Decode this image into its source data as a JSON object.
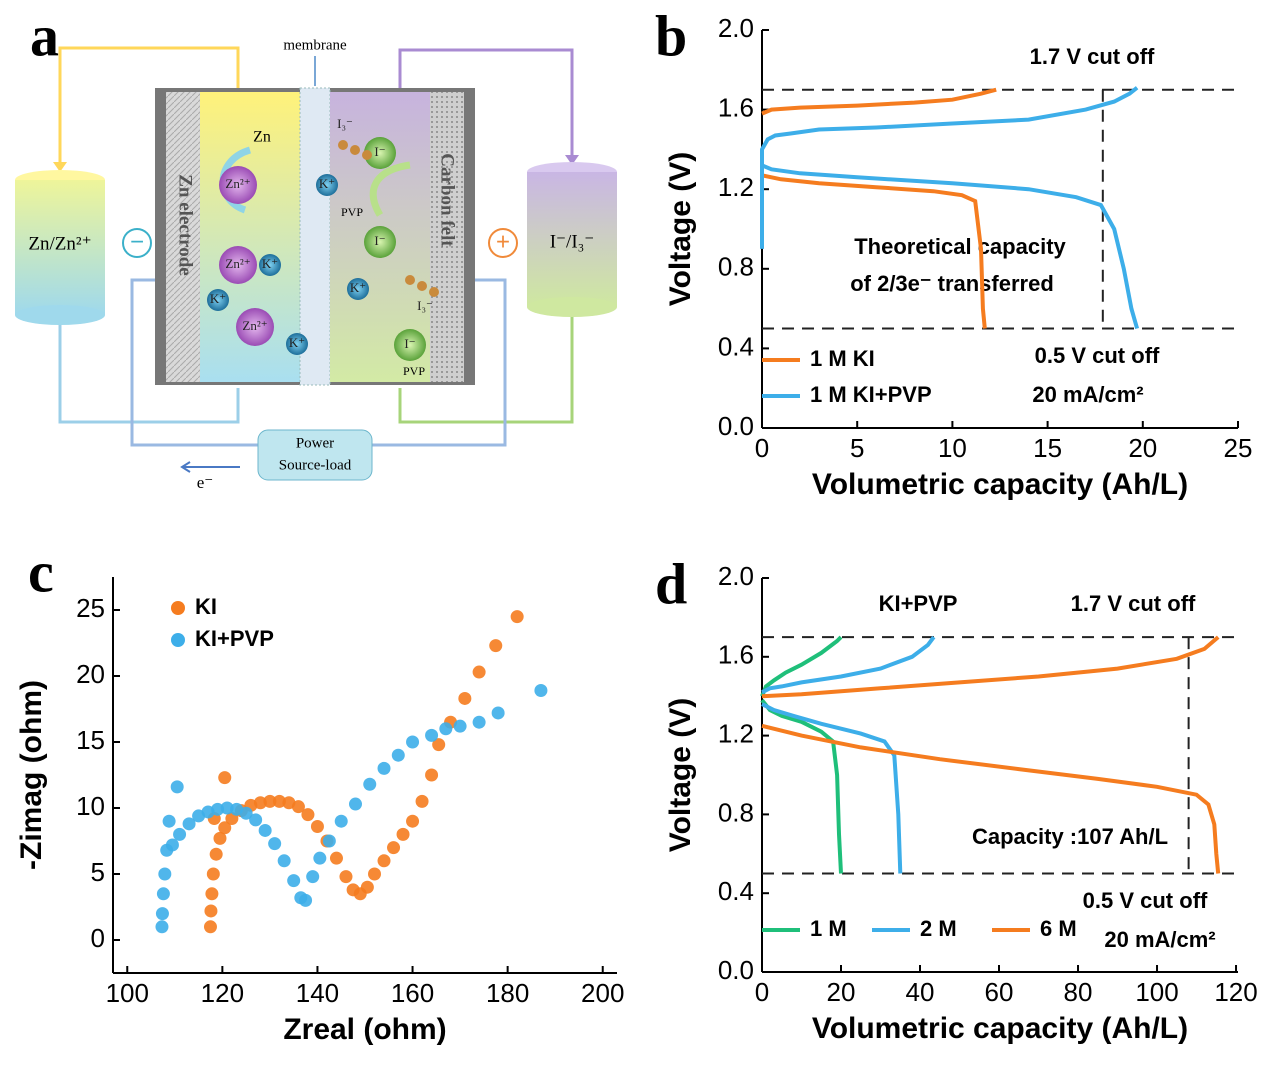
{
  "diagram": {
    "label": "a",
    "membrane": "membrane",
    "left_tank": "Zn/Zn²⁺",
    "right_tank": "I⁻/I₃⁻",
    "left_electrode": "Zn electrode",
    "right_electrode": "Carbon felt",
    "power": [
      "Power",
      "Source-load"
    ],
    "electron": "e⁻",
    "minus": "−",
    "plus": "+",
    "zn": "Zn",
    "pvp": [
      "PVP",
      "PVP"
    ],
    "ions": [
      "Zn²⁺",
      "Zn²⁺",
      "Zn²⁺",
      "K⁺",
      "K⁺",
      "K⁺",
      "K⁺",
      "K⁺",
      "I⁻",
      "I⁻",
      "I⁻",
      "I₃⁻",
      "I₃⁻"
    ]
  },
  "chart_data": [
    {
      "label": "b",
      "type": "line",
      "xlabel": "Volumetric capacity (Ah/L)",
      "ylabel": "Voltage (V)",
      "xlim": [
        0,
        25
      ],
      "ylim": [
        0,
        2
      ],
      "xticks": [
        0,
        5,
        10,
        15,
        20,
        25
      ],
      "yticks": [
        {
          "value": 0,
          "label": "0.0"
        },
        0.4,
        0.8,
        1.2,
        1.6,
        {
          "value": 2,
          "label": "2.0"
        }
      ],
      "hlines": [
        1.7,
        0.5
      ],
      "vline": 17.9,
      "annotations": [
        "1.7 V cut off",
        "Theoretical capacity",
        "of 2/3e⁻ transferred",
        "0.5 V cut off",
        "20 mA/cm²"
      ],
      "series": [
        {
          "name": "1 M KI",
          "color": "#f57c1f",
          "x": [
            0,
            0.5,
            2,
            5,
            8,
            10,
            11.5,
            12.3,
            null,
            0,
            1,
            3,
            6,
            9,
            10.5,
            11.2,
            11.5,
            11.6,
            11.7
          ],
          "values": [
            1.58,
            1.6,
            1.61,
            1.62,
            1.635,
            1.65,
            1.68,
            1.7,
            null,
            1.27,
            1.25,
            1.23,
            1.21,
            1.19,
            1.17,
            1.14,
            0.9,
            0.6,
            0.5
          ]
        },
        {
          "name": "1 M KI+PVP",
          "color": "#3daee9",
          "x": [
            0,
            0,
            0.3,
            0.7,
            1.5,
            3,
            6,
            10,
            14,
            17,
            18.5,
            19.3,
            19.7,
            null,
            0,
            0.5,
            2,
            5,
            10,
            14,
            16.5,
            17.8,
            18.5,
            19,
            19.4,
            19.7
          ],
          "values": [
            0.9,
            1.4,
            1.45,
            1.47,
            1.48,
            1.5,
            1.51,
            1.53,
            1.55,
            1.6,
            1.64,
            1.68,
            1.71,
            null,
            1.32,
            1.3,
            1.28,
            1.26,
            1.23,
            1.2,
            1.16,
            1.12,
            1.0,
            0.8,
            0.6,
            0.5
          ]
        }
      ]
    },
    {
      "label": "c",
      "type": "scatter",
      "xlabel": "Zreal (ohm)",
      "ylabel": "-Zimag (ohm)",
      "xlim": [
        97,
        203
      ],
      "ylim": [
        -2.5,
        27.5
      ],
      "xticks": [
        100,
        120,
        140,
        160,
        180,
        200
      ],
      "yticks": [
        0,
        5,
        10,
        15,
        20,
        25
      ],
      "series": [
        {
          "name": "KI",
          "color": "#f57c1f",
          "x": [
            117.5,
            117.6,
            117.8,
            118.1,
            118.7,
            119.5,
            120.5,
            122,
            124,
            126,
            128,
            130,
            132,
            134,
            136,
            138,
            140,
            142,
            144,
            146,
            147.5,
            149,
            150.5,
            152,
            154,
            156,
            158,
            160,
            162,
            164,
            165.5,
            168,
            171,
            174,
            177.5,
            182,
            120.5,
            118.3
          ],
          "values": [
            1.0,
            2.2,
            3.5,
            5,
            6.5,
            7.7,
            8.5,
            9.2,
            9.8,
            10.2,
            10.4,
            10.5,
            10.5,
            10.4,
            10.1,
            9.5,
            8.6,
            7.5,
            6.2,
            4.8,
            3.8,
            3.5,
            4,
            5,
            6,
            7,
            8,
            9,
            10.5,
            12.5,
            14.8,
            16.5,
            18.3,
            20.3,
            22.3,
            24.5,
            12.3,
            9.2
          ]
        },
        {
          "name": "KI+PVP",
          "color": "#3daee9",
          "x": [
            107.3,
            107.4,
            107.6,
            107.9,
            108.3,
            108.8,
            110.5,
            109.5,
            111,
            113,
            115,
            117,
            119,
            121,
            123,
            125,
            127,
            129,
            131,
            133,
            135,
            136.5,
            137.5,
            139,
            140.5,
            142.5,
            145,
            148,
            151,
            154,
            157,
            160,
            164,
            167,
            170,
            174,
            178,
            187
          ],
          "values": [
            1,
            2,
            3.5,
            5,
            6.8,
            9,
            11.6,
            7.2,
            8,
            8.8,
            9.4,
            9.7,
            9.9,
            10,
            9.9,
            9.6,
            9.1,
            8.3,
            7.3,
            6,
            4.5,
            3.2,
            3,
            4.8,
            6.2,
            7.5,
            9,
            10.3,
            11.8,
            13,
            14,
            15,
            15.5,
            16,
            16.2,
            16.5,
            17.2,
            18.9
          ]
        }
      ]
    },
    {
      "label": "d",
      "type": "line",
      "xlabel": "Volumetric capacity (Ah/L)",
      "ylabel": "Voltage (V)",
      "xlim": [
        0,
        120.5
      ],
      "ylim": [
        0,
        2
      ],
      "xticks": [
        0,
        20,
        40,
        60,
        80,
        100,
        120
      ],
      "yticks": [
        {
          "value": 0,
          "label": "0.0"
        },
        0.4,
        0.8,
        1.2,
        1.6,
        {
          "value": 2,
          "label": "2.0"
        }
      ],
      "hlines": [
        1.7,
        0.5
      ],
      "vline": 108,
      "annotations": [
        "KI+PVP",
        "1.7 V cut off",
        "Capacity :107 Ah/L",
        "0.5 V cut off",
        "20 mA/cm²"
      ],
      "series": [
        {
          "name": "1 M",
          "color": "#1fbf7a",
          "x": [
            0,
            1,
            3,
            6,
            10,
            15,
            19,
            20,
            null,
            0,
            2,
            5,
            10,
            15,
            18,
            19,
            19.5,
            20
          ],
          "values": [
            1.4,
            1.45,
            1.48,
            1.52,
            1.56,
            1.62,
            1.68,
            1.7,
            null,
            1.38,
            1.33,
            1.3,
            1.27,
            1.22,
            1.17,
            1.0,
            0.7,
            0.5
          ]
        },
        {
          "name": "2 M",
          "color": "#3daee9",
          "x": [
            0,
            2,
            5,
            10,
            20,
            30,
            38,
            42,
            43.5,
            null,
            0,
            3,
            8,
            15,
            25,
            31,
            33.5,
            34.5,
            35
          ],
          "values": [
            1.42,
            1.44,
            1.45,
            1.47,
            1.5,
            1.54,
            1.6,
            1.66,
            1.7,
            null,
            1.36,
            1.33,
            1.3,
            1.26,
            1.21,
            1.17,
            1.1,
            0.8,
            0.5
          ]
        },
        {
          "name": "6 M",
          "color": "#f57c1f",
          "x": [
            0,
            10,
            30,
            50,
            70,
            90,
            105,
            112,
            115.5,
            null,
            0,
            10,
            25,
            45,
            65,
            85,
            100,
            110,
            113,
            114.5,
            115,
            115.5
          ],
          "values": [
            1.4,
            1.41,
            1.44,
            1.47,
            1.5,
            1.54,
            1.59,
            1.64,
            1.7,
            null,
            1.25,
            1.2,
            1.14,
            1.08,
            1.03,
            0.98,
            0.94,
            0.9,
            0.85,
            0.75,
            0.6,
            0.5
          ]
        }
      ]
    }
  ]
}
